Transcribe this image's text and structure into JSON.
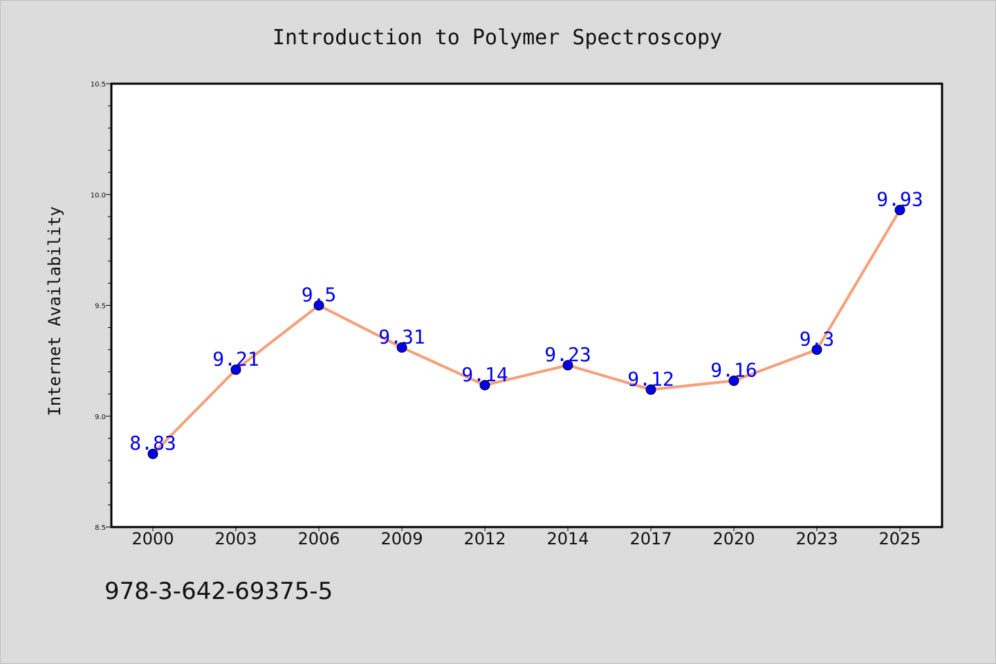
{
  "chart_data": {
    "type": "line",
    "title": "Introduction to Polymer Spectroscopy",
    "xlabel": "",
    "ylabel": "Internet Availability",
    "categories": [
      "2000",
      "2003",
      "2006",
      "2009",
      "2012",
      "2014",
      "2017",
      "2020",
      "2023",
      "2025"
    ],
    "series": [
      {
        "values": [
          8.83,
          9.21,
          9.5,
          9.31,
          9.14,
          9.23,
          9.12,
          9.16,
          9.3,
          9.93
        ],
        "labels": [
          "8.83",
          "9.21",
          "9.5",
          "9.31",
          "9.14",
          "9.23",
          "9.12",
          "9.16",
          "9.3",
          "9.93"
        ],
        "line_color": "#f4a07a",
        "marker_color": "#0000ee"
      }
    ],
    "ylim": [
      8.5,
      10.5
    ],
    "yticks": [
      "8.5",
      "9.0",
      "9.5",
      "10.0",
      "10.5"
    ],
    "grid": false,
    "legend": "none",
    "footnote": "978-3-642-69375-5",
    "colors": {
      "background": "#dcdcdc",
      "plot_background": "#ffffff",
      "label_color": "#0000ee"
    }
  }
}
